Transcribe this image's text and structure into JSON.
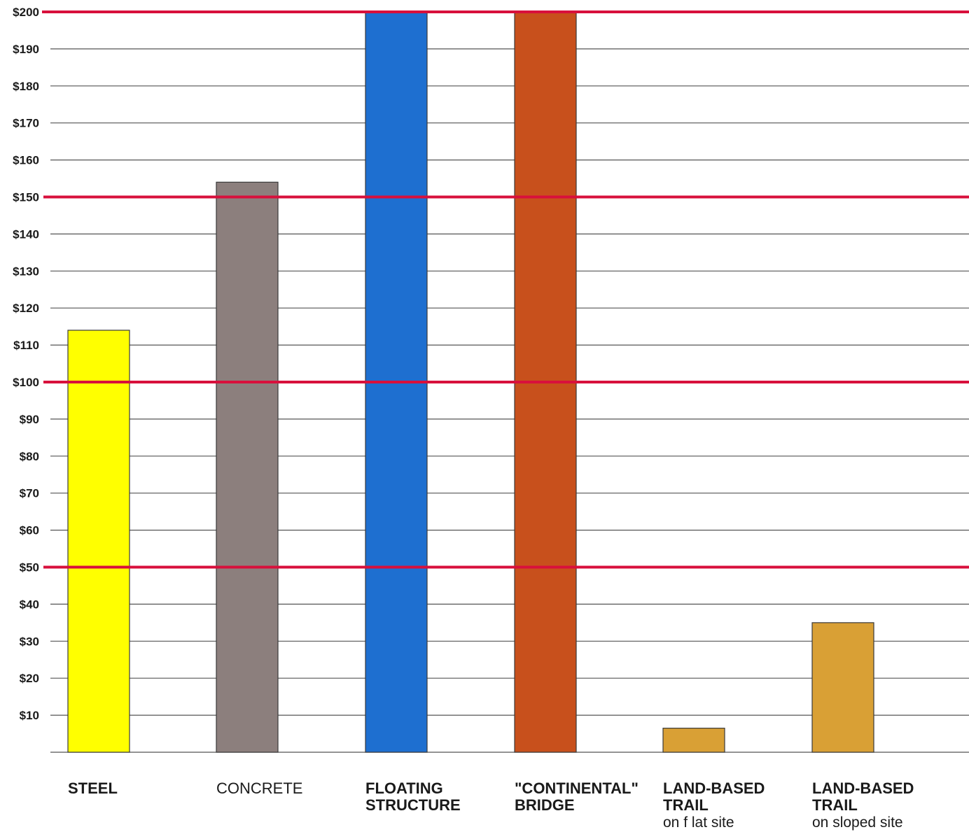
{
  "chart_data": {
    "type": "bar",
    "title": "",
    "xlabel": "",
    "ylabel": "",
    "ylim": [
      0,
      200
    ],
    "y_ticks": [
      "$10",
      "$20",
      "$30",
      "$40",
      "$50",
      "$60",
      "$70",
      "$80",
      "$90",
      "$100",
      "$110",
      "$120",
      "$130",
      "$140",
      "$150",
      "$160",
      "$170",
      "$180",
      "$190",
      "$200"
    ],
    "grid": true,
    "emphasized_gridlines": [
      50,
      100,
      150,
      200
    ],
    "gridline_color": "#555555",
    "emphasis_color": "#d8103c",
    "categories": [
      {
        "lines": [
          "STEEL"
        ],
        "sub": "",
        "bold": true,
        "value": 114,
        "color": "#ffff00"
      },
      {
        "lines": [
          "CONCRETE"
        ],
        "sub": "",
        "bold": false,
        "value": 154,
        "color": "#8c7f7d"
      },
      {
        "lines": [
          "FLOATING",
          "STRUCTURE"
        ],
        "sub": "",
        "bold": true,
        "value": 200,
        "color": "#1e6fd0"
      },
      {
        "lines": [
          "\"CONTINENTAL\"",
          "BRIDGE"
        ],
        "sub": "",
        "bold": true,
        "value": 200,
        "color": "#c8501c"
      },
      {
        "lines": [
          "LAND-BASED",
          "TRAIL"
        ],
        "sub": "on f lat site",
        "bold": true,
        "value": 6.5,
        "color": "#d9a035"
      },
      {
        "lines": [
          "LAND-BASED",
          "TRAIL"
        ],
        "sub": "on sloped site",
        "bold": true,
        "value": 35,
        "color": "#d9a035"
      }
    ]
  }
}
